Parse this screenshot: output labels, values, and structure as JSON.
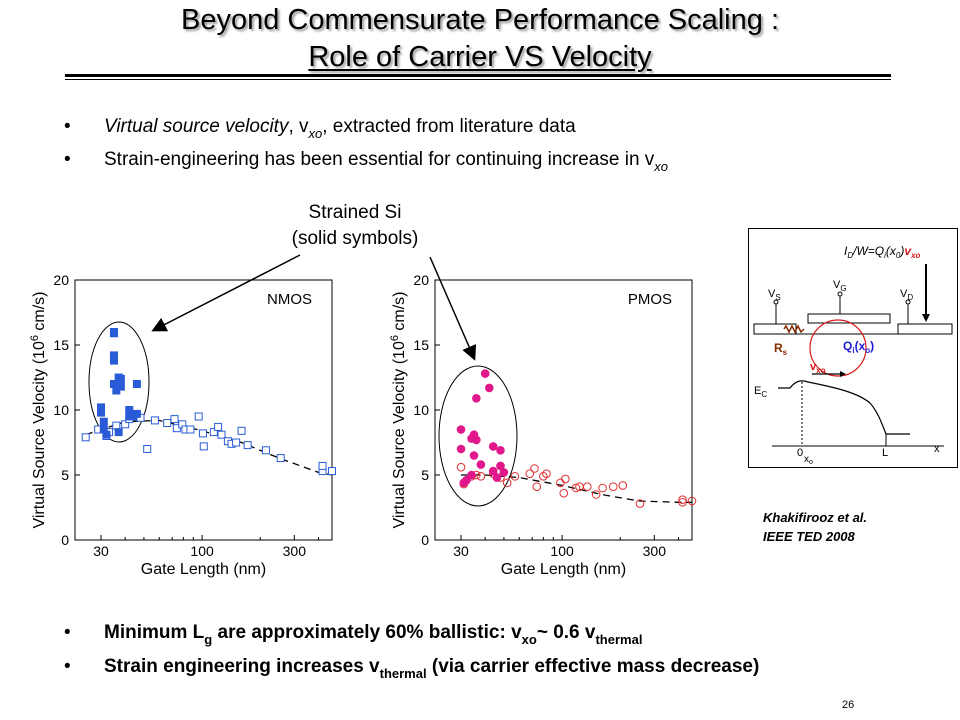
{
  "slide": {
    "title_line1": "Beyond Commensurate Performance Scaling :",
    "title_line2": "Role of  Carrier VS Velocity",
    "bullet_char": "•",
    "bullets_top": [
      {
        "italic_part": "Virtual source velocity",
        "text_part": ", v",
        "sub": "xo",
        "tail": ", extracted from literature data"
      },
      {
        "text_part": "Strain-engineering has been essential for continuing increase in v",
        "sub": "xo"
      }
    ],
    "callout_line1": "Strained Si",
    "callout_line2": "(solid symbols)",
    "reference_line1": "Khakifirooz et al.",
    "reference_line2": "IEEE TED 2008",
    "page_number": "26",
    "bullet3": {
      "a": "Minimum L",
      "a_sub": "g",
      "b": " are approximately 60% ballistic:  v",
      "b_sub": "xo",
      "c": "~ 0.6 v",
      "c_sub": "thermal"
    },
    "bullet4": {
      "a": "Strain engineering increases v",
      "a_sub": "thermal",
      "b": " (via carrier effective mass decrease)"
    }
  },
  "diagram": {
    "equation": {
      "a": "I",
      "a_sub": "D",
      "b": "/W=Q",
      "b_sub": "i",
      "c": "(x",
      "c_sub": "0",
      "d": ")",
      "e": "v",
      "e_sub": "xo"
    },
    "vs": "V",
    "vs_sub": "S",
    "vg": "V",
    "vg_sub": "G",
    "vd": "V",
    "vd_sub": "D",
    "rs": "R",
    "rs_sub": "s",
    "qi": "Q",
    "qi_sub": "i",
    "qi_tail": "(x",
    "qi_sub2": "o",
    "qi_end": ")",
    "vxo": "v",
    "vxo_sub": "xo",
    "ec": "E",
    "ec_sub": "C",
    "zero": "0",
    "xo": "x",
    "xo_sub": "o",
    "L": "L",
    "x": "x",
    "colors": {
      "blue": "#1a1ad6",
      "red": "#d81a1a",
      "brown": "#8a2a00"
    }
  },
  "chart_data": [
    {
      "type": "scatter",
      "panel_label": "NMOS",
      "xlabel": "Gate Length (nm)",
      "ylabel": "Virtual Source Velocity (10",
      "ylabel_sup": "6",
      "ylabel_tail": " cm/s)",
      "xscale": "log",
      "xlim": [
        22,
        470
      ],
      "ylim": [
        0,
        20
      ],
      "xticks": [
        30,
        100,
        300
      ],
      "yticks": [
        0,
        5,
        10,
        15,
        20
      ],
      "color": "#2a5bd7",
      "marker": "square",
      "series": [
        {
          "name": "Strained Si",
          "filled": true,
          "points": [
            [
              30,
              10.2
            ],
            [
              30,
              9.8
            ],
            [
              31,
              9.1
            ],
            [
              31,
              8.5
            ],
            [
              35,
              16.0
            ],
            [
              35,
              15.9
            ],
            [
              35,
              14.2
            ],
            [
              35,
              13.8
            ],
            [
              35,
              12.0
            ],
            [
              36,
              11.5
            ],
            [
              37,
              12.5
            ],
            [
              38,
              12.4
            ],
            [
              38,
              11.8
            ],
            [
              42,
              10.0
            ],
            [
              42,
              9.5
            ],
            [
              44,
              9.5
            ],
            [
              46,
              9.7
            ],
            [
              46,
              12.0
            ],
            [
              32,
              8.1
            ],
            [
              37,
              8.3
            ],
            [
              44,
              9.6
            ]
          ]
        },
        {
          "name": "",
          "filled": false,
          "points": [
            [
              25,
              7.9
            ],
            [
              29,
              8.5
            ],
            [
              32,
              8.0
            ],
            [
              33,
              8.3
            ],
            [
              36,
              8.8
            ],
            [
              40,
              8.9
            ],
            [
              42,
              9.3
            ],
            [
              46,
              9.5
            ],
            [
              48,
              9.4
            ],
            [
              52,
              7.0
            ],
            [
              57,
              9.2
            ],
            [
              66,
              9.0
            ],
            [
              72,
              9.3
            ],
            [
              74,
              8.6
            ],
            [
              79,
              8.9
            ],
            [
              82,
              8.5
            ],
            [
              87,
              8.5
            ],
            [
              96,
              9.5
            ],
            [
              101,
              8.2
            ],
            [
              102,
              7.2
            ],
            [
              115,
              8.3
            ],
            [
              121,
              8.7
            ],
            [
              126,
              8.1
            ],
            [
              136,
              7.6
            ],
            [
              142,
              7.4
            ],
            [
              150,
              7.5
            ],
            [
              160,
              8.4
            ],
            [
              172,
              7.3
            ],
            [
              214,
              6.9
            ],
            [
              255,
              6.3
            ],
            [
              420,
              5.3
            ],
            [
              420,
              5.7
            ],
            [
              470,
              5.3
            ]
          ]
        }
      ],
      "trend": {
        "x": [
          25,
          40,
          60,
          100,
          160,
          250,
          400,
          470
        ],
        "y": [
          8.1,
          9.1,
          9.2,
          8.4,
          7.5,
          6.3,
          5.2,
          5.0
        ]
      }
    },
    {
      "type": "scatter",
      "panel_label": "PMOS",
      "xlabel": "Gate Length (nm)",
      "ylabel": "Virtual Source Velocity (10",
      "ylabel_sup": "6",
      "ylabel_tail": " cm/s)",
      "xscale": "log",
      "xlim": [
        22,
        470
      ],
      "ylim": [
        0,
        20
      ],
      "xticks": [
        30,
        100,
        300
      ],
      "yticks": [
        0,
        5,
        10,
        15,
        20
      ],
      "color": "#e0188c",
      "hollow_color": "#e03030",
      "marker": "circle",
      "series": [
        {
          "name": "Strained Si",
          "filled": true,
          "points": [
            [
              30,
              8.5
            ],
            [
              30,
              7.0
            ],
            [
              31,
              4.4
            ],
            [
              32,
              4.6
            ],
            [
              34,
              7.8
            ],
            [
              35,
              8.1
            ],
            [
              35,
              6.5
            ],
            [
              36,
              7.7
            ],
            [
              36,
              10.9
            ],
            [
              38,
              5.8
            ],
            [
              40,
              12.8
            ],
            [
              42,
              11.7
            ],
            [
              44,
              7.2
            ],
            [
              46,
              4.8
            ],
            [
              48,
              6.9
            ],
            [
              48,
              5.7
            ],
            [
              50,
              5.2
            ],
            [
              34,
              5.0
            ],
            [
              44,
              5.3
            ]
          ]
        },
        {
          "name": "",
          "filled": false,
          "points": [
            [
              30,
              5.6
            ],
            [
              31,
              4.3
            ],
            [
              34,
              4.9
            ],
            [
              36,
              5.0
            ],
            [
              38,
              4.9
            ],
            [
              44,
              5.1
            ],
            [
              48,
              4.8
            ],
            [
              52,
              4.4
            ],
            [
              57,
              4.9
            ],
            [
              68,
              5.1
            ],
            [
              72,
              5.5
            ],
            [
              74,
              4.1
            ],
            [
              80,
              4.9
            ],
            [
              83,
              5.1
            ],
            [
              98,
              4.4
            ],
            [
              102,
              3.6
            ],
            [
              104,
              4.7
            ],
            [
              118,
              4.0
            ],
            [
              123,
              4.1
            ],
            [
              135,
              4.1
            ],
            [
              150,
              3.5
            ],
            [
              162,
              4.0
            ],
            [
              184,
              4.1
            ],
            [
              206,
              4.2
            ],
            [
              253,
              2.8
            ],
            [
              420,
              2.9
            ],
            [
              420,
              3.1
            ],
            [
              470,
              3.0
            ]
          ]
        }
      ],
      "trend": {
        "x": [
          30,
          40,
          60,
          100,
          160,
          250,
          400,
          470
        ],
        "y": [
          5.0,
          5.0,
          4.8,
          4.2,
          3.5,
          3.0,
          2.9,
          2.9
        ]
      }
    }
  ]
}
